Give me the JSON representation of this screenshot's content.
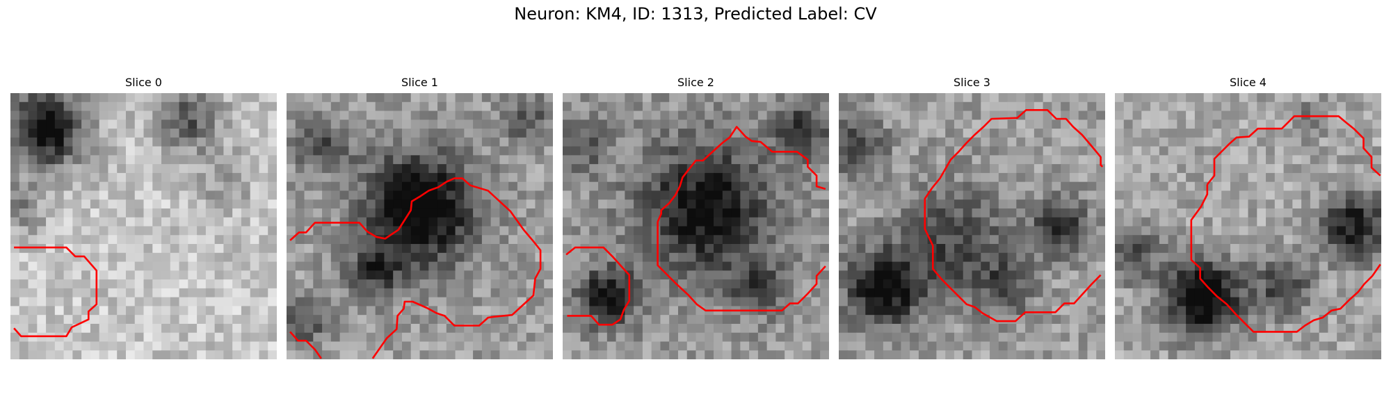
{
  "figure": {
    "title": "Neuron: KM4, ID: 1313, Predicted Label: CV",
    "contour_color": "#ff0000"
  },
  "slices": [
    {
      "title": "Slice 0"
    },
    {
      "title": "Slice 1"
    },
    {
      "title": "Slice 2"
    },
    {
      "title": "Slice 3"
    },
    {
      "title": "Slice 4"
    }
  ]
}
